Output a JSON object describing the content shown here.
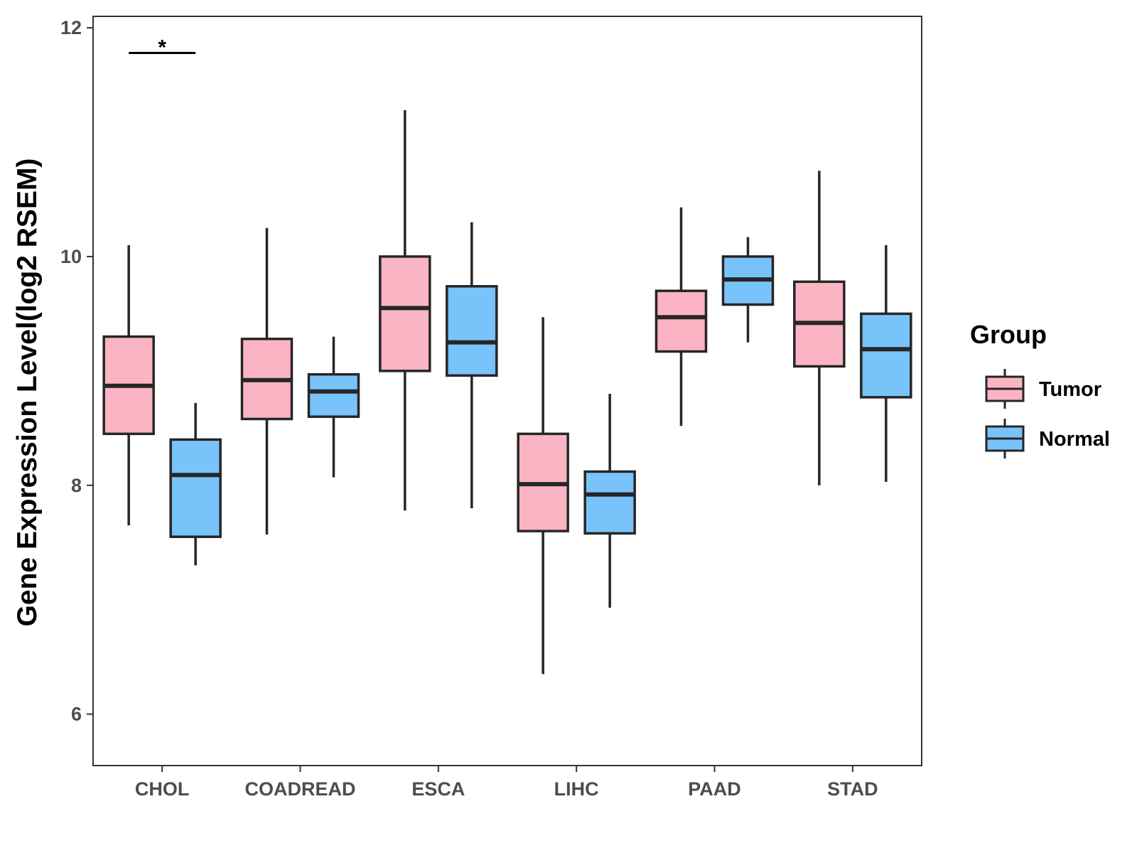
{
  "chart_data": {
    "type": "boxplot",
    "title": "",
    "xlabel": "",
    "ylabel": "Gene Expression Level(log2 RSEM)",
    "ylim": [
      5.55,
      12.1
    ],
    "yticks": [
      6,
      8,
      10,
      12
    ],
    "categories": [
      "CHOL",
      "COADREAD",
      "ESCA",
      "LIHC",
      "PAAD",
      "STAD"
    ],
    "legend": {
      "title": "Group",
      "position": "right",
      "entries": [
        {
          "name": "Tumor",
          "color": "#fbb4c4"
        },
        {
          "name": "Normal",
          "color": "#78c3fa"
        }
      ]
    },
    "series": [
      {
        "name": "Tumor",
        "color": "#fbb4c4",
        "boxes": [
          {
            "category": "CHOL",
            "min": 7.65,
            "q1": 8.45,
            "median": 8.87,
            "q3": 9.3,
            "max": 10.1
          },
          {
            "category": "COADREAD",
            "min": 7.57,
            "q1": 8.58,
            "median": 8.92,
            "q3": 9.28,
            "max": 10.25
          },
          {
            "category": "ESCA",
            "min": 7.78,
            "q1": 9.0,
            "median": 9.55,
            "q3": 10.0,
            "max": 11.28
          },
          {
            "category": "LIHC",
            "min": 6.35,
            "q1": 7.6,
            "median": 8.01,
            "q3": 8.45,
            "max": 9.47
          },
          {
            "category": "PAAD",
            "min": 8.52,
            "q1": 9.17,
            "median": 9.47,
            "q3": 9.7,
            "max": 10.43
          },
          {
            "category": "STAD",
            "min": 8.0,
            "q1": 9.04,
            "median": 9.42,
            "q3": 9.78,
            "max": 10.75
          }
        ]
      },
      {
        "name": "Normal",
        "color": "#78c3fa",
        "boxes": [
          {
            "category": "CHOL",
            "min": 7.3,
            "q1": 7.55,
            "median": 8.09,
            "q3": 8.4,
            "max": 8.72
          },
          {
            "category": "COADREAD",
            "min": 8.07,
            "q1": 8.6,
            "median": 8.82,
            "q3": 8.97,
            "max": 9.3
          },
          {
            "category": "ESCA",
            "min": 7.8,
            "q1": 8.96,
            "median": 9.25,
            "q3": 9.74,
            "max": 10.3
          },
          {
            "category": "LIHC",
            "min": 6.93,
            "q1": 7.58,
            "median": 7.92,
            "q3": 8.12,
            "max": 8.8
          },
          {
            "category": "PAAD",
            "min": 9.25,
            "q1": 9.58,
            "median": 9.8,
            "q3": 10.0,
            "max": 10.17
          },
          {
            "category": "STAD",
            "min": 8.03,
            "q1": 8.77,
            "median": 9.19,
            "q3": 9.5,
            "max": 10.1
          }
        ]
      }
    ],
    "annotations": [
      {
        "category": "CHOL",
        "label": "*",
        "y": 11.78
      }
    ]
  }
}
